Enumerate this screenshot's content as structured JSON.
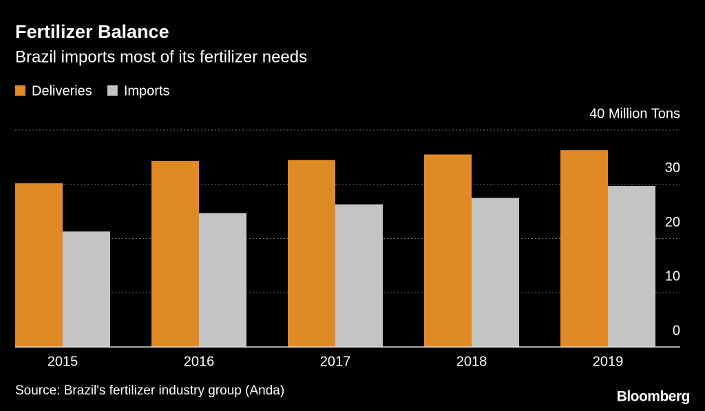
{
  "chart_data": {
    "type": "bar",
    "title": "Fertilizer Balance",
    "subtitle": "Brazil imports most of its fertilizer needs",
    "categories": [
      "2015",
      "2016",
      "2017",
      "2018",
      "2019"
    ],
    "series": [
      {
        "name": "Deliveries",
        "color": "#e08a25",
        "values": [
          30.2,
          34.3,
          34.5,
          35.5,
          36.3
        ]
      },
      {
        "name": "Imports",
        "color": "#c4c4c4",
        "values": [
          21.3,
          24.7,
          26.3,
          27.5,
          29.7
        ]
      }
    ],
    "ylim": [
      0,
      40
    ],
    "yticks": [
      0,
      10,
      20,
      30,
      {
        "value": 40,
        "label": "40 Million Tons"
      }
    ],
    "grid": true,
    "legend": "top-left",
    "source": "Source: Brazil's fertilizer industry group (Anda)",
    "logo": "Bloomberg"
  }
}
